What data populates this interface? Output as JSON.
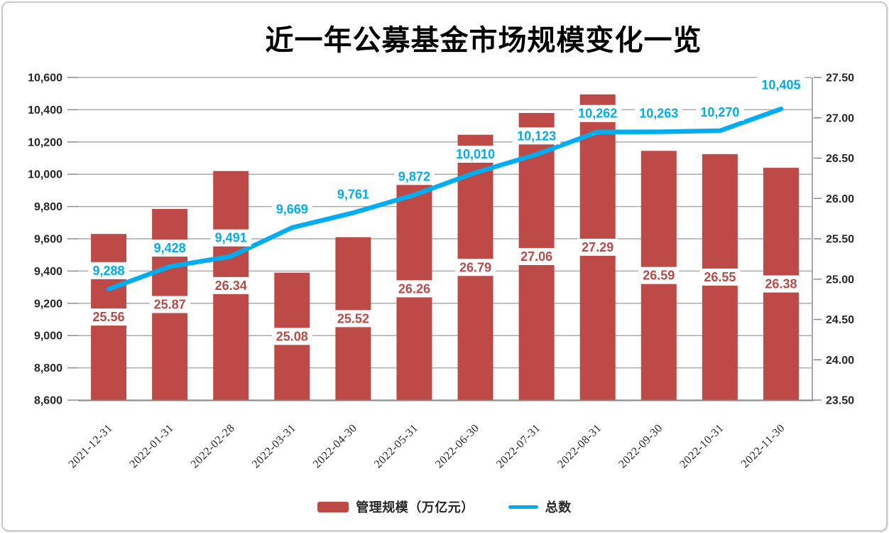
{
  "chart_data": {
    "type": "bar+line",
    "title": "近一年公募基金市场规模变化一览",
    "categories": [
      "2021-12-31",
      "2022-01-31",
      "2022-02-28",
      "2022-03-31",
      "2022-04-30",
      "2022-05-31",
      "2022-06-30",
      "2022-07-31",
      "2022-08-31",
      "2022-09-30",
      "2022-10-31",
      "2022-11-30"
    ],
    "series": [
      {
        "name": "管理规模（万亿元）",
        "type": "bar",
        "axis": "right",
        "color": "#be4a47",
        "values": [
          25.56,
          25.87,
          26.34,
          25.08,
          25.52,
          26.26,
          26.79,
          27.06,
          27.29,
          26.59,
          26.55,
          26.38
        ]
      },
      {
        "name": "总数",
        "type": "line",
        "axis": "left",
        "color": "#00aeef",
        "values": [
          9288,
          9428,
          9491,
          9669,
          9761,
          9872,
          10010,
          10123,
          10262,
          10263,
          10270,
          10405
        ]
      }
    ],
    "left_axis": {
      "min": 8600,
      "max": 10600,
      "step": 200,
      "tick_labels": [
        "8,600",
        "8,800",
        "9,000",
        "9,200",
        "9,400",
        "9,600",
        "9,800",
        "10,000",
        "10,200",
        "10,400",
        "10,600"
      ]
    },
    "right_axis": {
      "min": 23.5,
      "max": 27.5,
      "step": 0.5,
      "tick_labels": [
        "23.50",
        "24.00",
        "24.50",
        "25.00",
        "25.50",
        "26.00",
        "26.50",
        "27.00",
        "27.50"
      ]
    },
    "grid": true,
    "legend_position": "bottom",
    "data_labels": {
      "bar_format": "fixed2",
      "line_format": "thousands",
      "background": "#ffffff"
    },
    "colors": {
      "grid": "#acacac",
      "axis_line": "#8c8c8c",
      "axis_text": "#262626",
      "category_text": "#262626",
      "title_text": "#000000",
      "border": "#c9c9c9"
    }
  }
}
